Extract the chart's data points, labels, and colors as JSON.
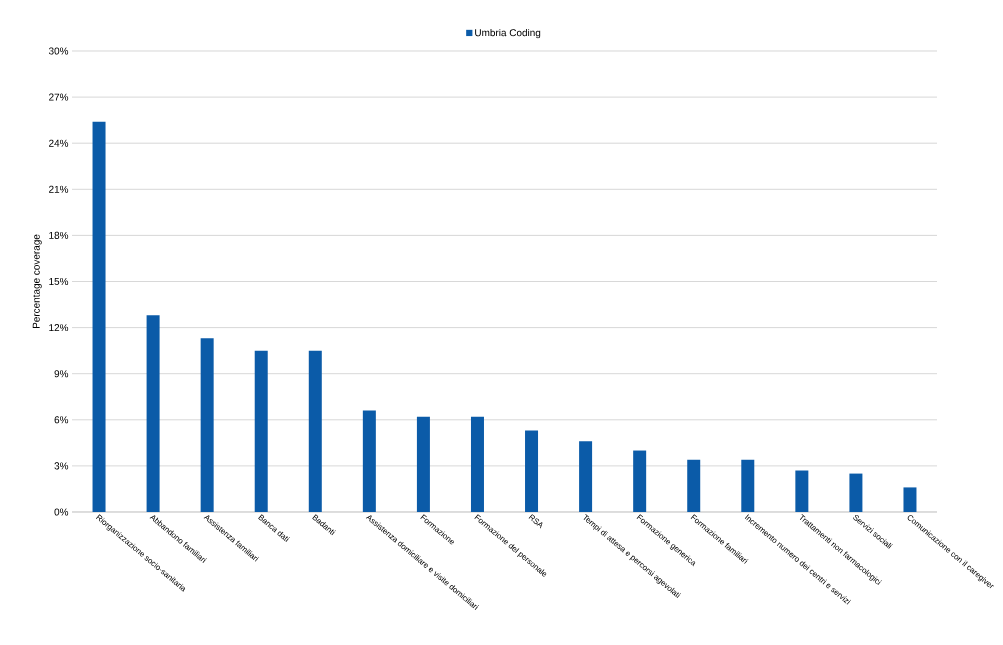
{
  "chart_data": {
    "type": "bar",
    "ylabel": "Percentage coverage",
    "categories": [
      "Riorganizzazione socio-sanitaria",
      "Abbandono familiari",
      "Assistenza familiari",
      "Banca dati",
      "Badanti",
      "Assistenza domiciliare e visite domiciliari",
      "Formazione",
      "Formazione del personale",
      "RSA",
      "Tempi di attesa e percorsi agevolati",
      "Formazione generica",
      "Formazione familiari",
      "Incremento numero dei centri e servizi",
      "Trattamenti non farmacologici",
      "Servizi sociali",
      "Comunicazione con il caregiver"
    ],
    "series": [
      {
        "name": "Umbria Coding",
        "color": "#0b5ba8",
        "values": [
          25.4,
          12.8,
          11.3,
          10.5,
          10.5,
          6.6,
          6.2,
          6.2,
          5.3,
          4.6,
          4.0,
          3.4,
          3.4,
          2.7,
          2.5,
          1.6
        ]
      }
    ],
    "ylim": [
      0,
      30
    ],
    "yticks": [
      {
        "value": 0,
        "label": "0%"
      },
      {
        "value": 3,
        "label": "3%"
      },
      {
        "value": 6,
        "label": "6%"
      },
      {
        "value": 9,
        "label": "9%"
      },
      {
        "value": 12,
        "label": "12%"
      },
      {
        "value": 15,
        "label": "15%"
      },
      {
        "value": 18,
        "label": "18%"
      },
      {
        "value": 21,
        "label": "21%"
      },
      {
        "value": 24,
        "label": "24%"
      },
      {
        "value": 27,
        "label": "27%"
      },
      {
        "value": 30,
        "label": "30%"
      }
    ],
    "grid": "y",
    "legend": "top"
  }
}
